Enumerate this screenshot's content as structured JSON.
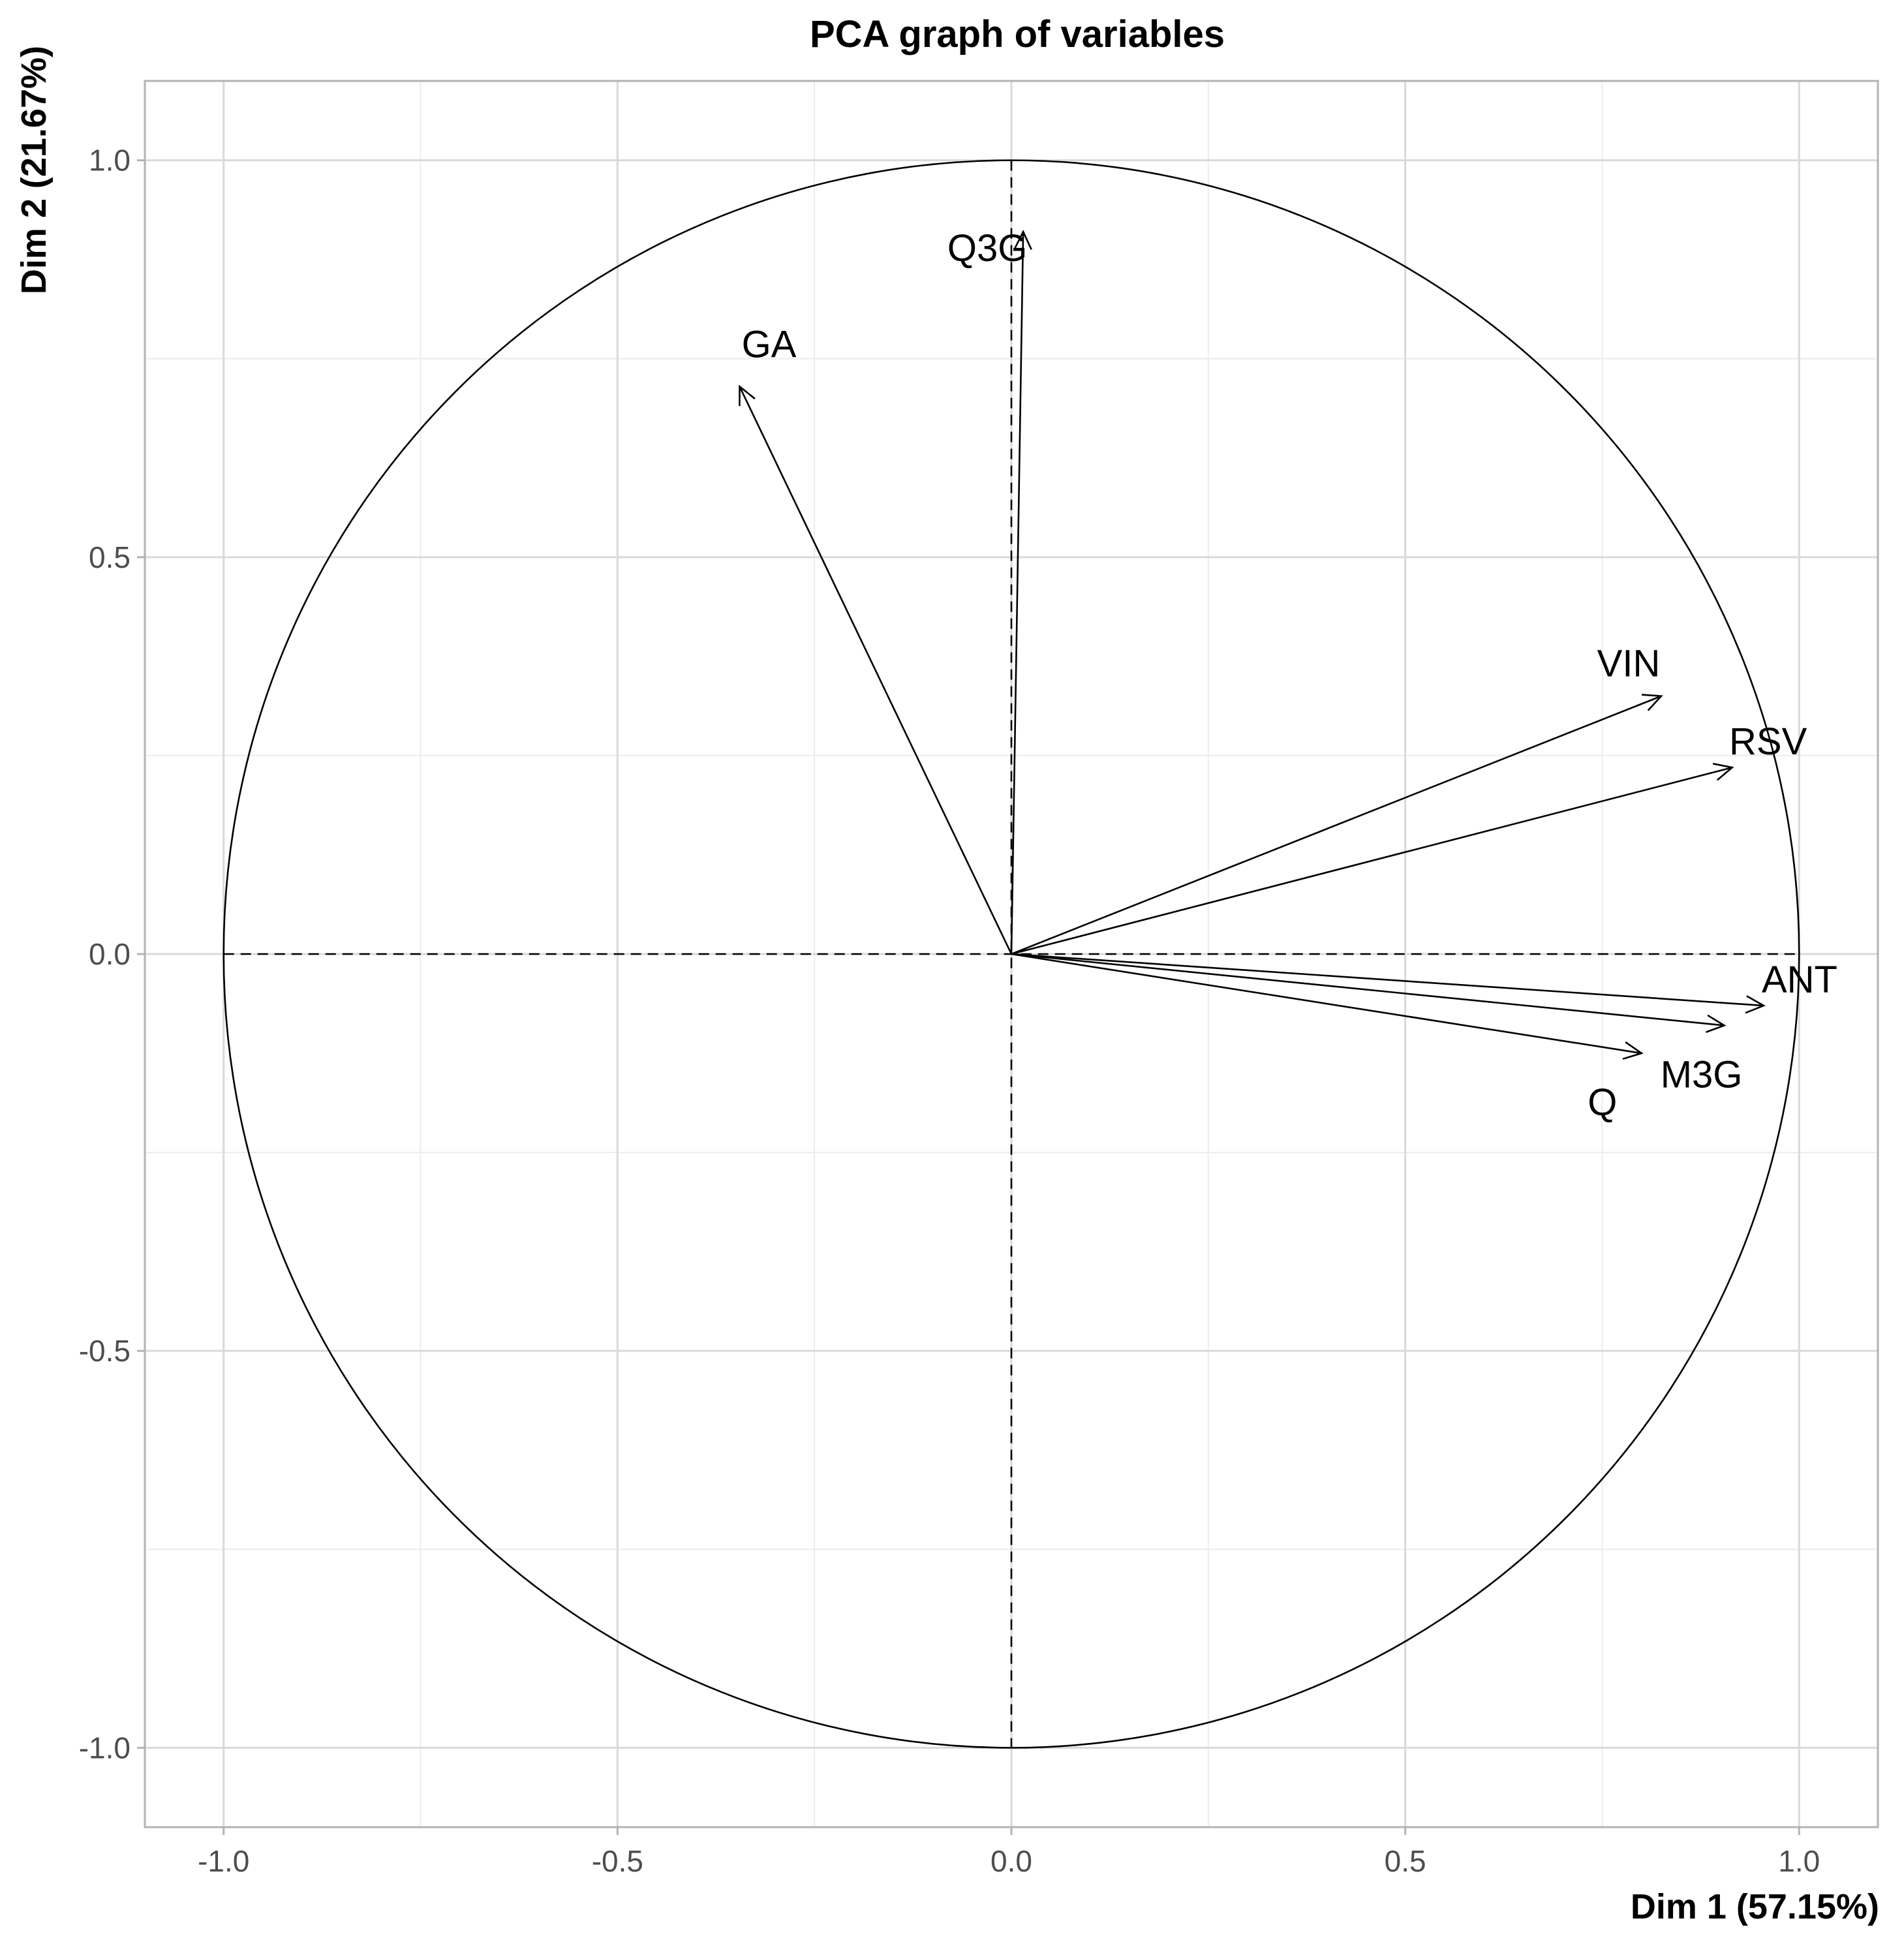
{
  "chart_data": {
    "type": "scatter",
    "subtype": "pca-correlation-circle",
    "title": "PCA graph of variables",
    "xlabel": "Dim 1 (57.15%)",
    "ylabel": "Dim 2 (21.67%)",
    "xlim": [
      -1.1,
      1.1
    ],
    "ylim": [
      -1.1,
      1.1
    ],
    "x_ticks": [
      -1.0,
      -0.5,
      0.0,
      0.5,
      1.0
    ],
    "y_ticks": [
      -1.0,
      -0.5,
      0.0,
      0.5,
      1.0
    ],
    "x_tick_labels": [
      "-1.0",
      "-0.5",
      "0.0",
      "0.5",
      "1.0"
    ],
    "y_tick_labels": [
      "-1.0",
      "-0.5",
      "0.0",
      "0.5",
      "1.0"
    ],
    "grid": true,
    "unit_circle": true,
    "variables": [
      {
        "name": "Q3G",
        "x": 0.015,
        "y": 0.91
      },
      {
        "name": "GA",
        "x": -0.345,
        "y": 0.715
      },
      {
        "name": "VIN",
        "x": 0.825,
        "y": 0.325
      },
      {
        "name": "RSV",
        "x": 0.915,
        "y": 0.235
      },
      {
        "name": "ANT",
        "x": 0.955,
        "y": -0.065
      },
      {
        "name": "M3G",
        "x": 0.905,
        "y": -0.09
      },
      {
        "name": "Q",
        "x": 0.8,
        "y": -0.125
      }
    ]
  }
}
